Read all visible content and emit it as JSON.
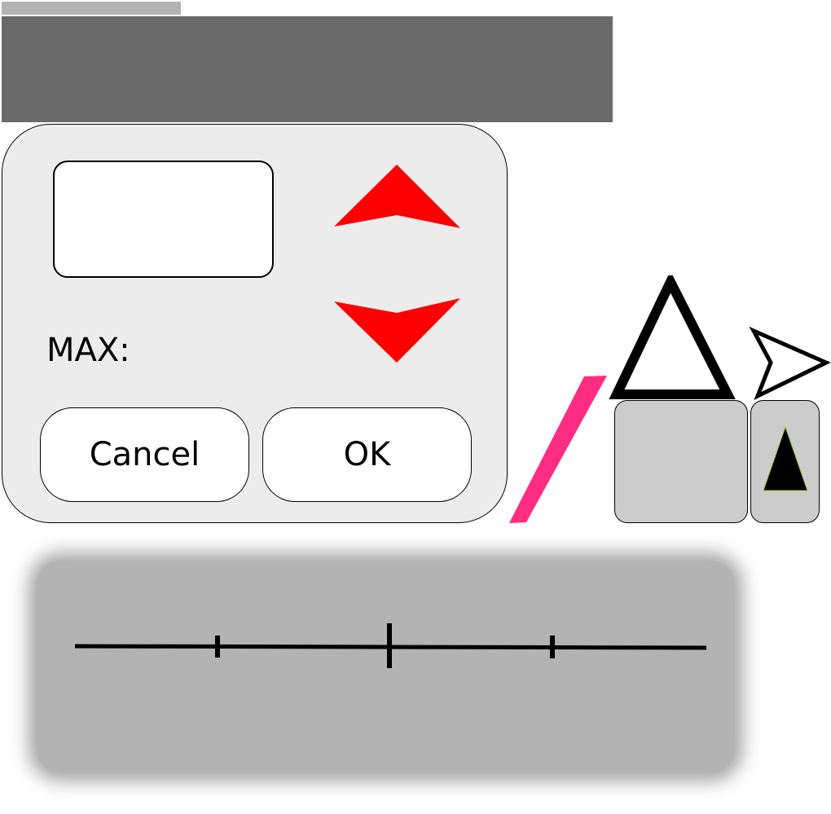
{
  "dialog": {
    "max_label": "MAX:",
    "cancel_label": "Cancel",
    "ok_label": "OK",
    "spin_color": "#ff0000"
  },
  "decor": {
    "slash_color": "#ff2d82",
    "tile_color": "#cccccc",
    "header_color": "#696969"
  },
  "icons": {
    "spin_up": "spin-up-icon",
    "spin_down": "spin-down-icon",
    "warning": "warning-triangle-icon",
    "arrow": "arrow-right-icon",
    "tile_arrow": "triangle-up-icon"
  }
}
